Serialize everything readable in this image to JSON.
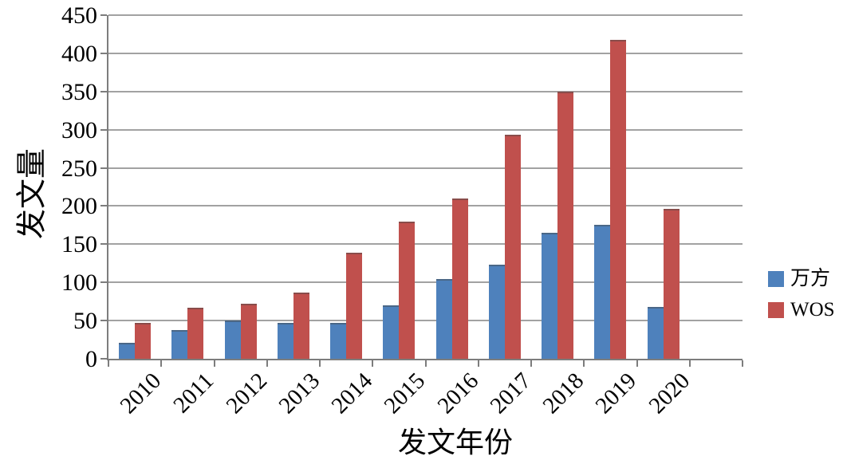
{
  "chart_data": {
    "type": "bar",
    "title": "",
    "xlabel": "发文年份",
    "ylabel": "发文量",
    "categories": [
      "2010",
      "2011",
      "2012",
      "2013",
      "2014",
      "2015",
      "2016",
      "2017",
      "2018",
      "2019",
      "2020"
    ],
    "series": [
      {
        "name": "万方",
        "color": "#4E81BC",
        "values": [
          21,
          38,
          50,
          47,
          47,
          70,
          104,
          123,
          165,
          175,
          68
        ]
      },
      {
        "name": "WOS",
        "color": "#C0504D",
        "values": [
          47,
          67,
          72,
          87,
          139,
          180,
          210,
          293,
          350,
          418,
          196
        ]
      }
    ],
    "ylim": [
      0,
      450
    ],
    "y_tick_step": 50,
    "y_ticks": [
      0,
      50,
      100,
      150,
      200,
      250,
      300,
      350,
      400,
      450
    ],
    "grid": "horizontal",
    "legend_position": "right",
    "x_slots": 12,
    "axis_color": "#7d7d7d",
    "gridline_color": "#a2a2a2",
    "text_color": "#000000"
  }
}
